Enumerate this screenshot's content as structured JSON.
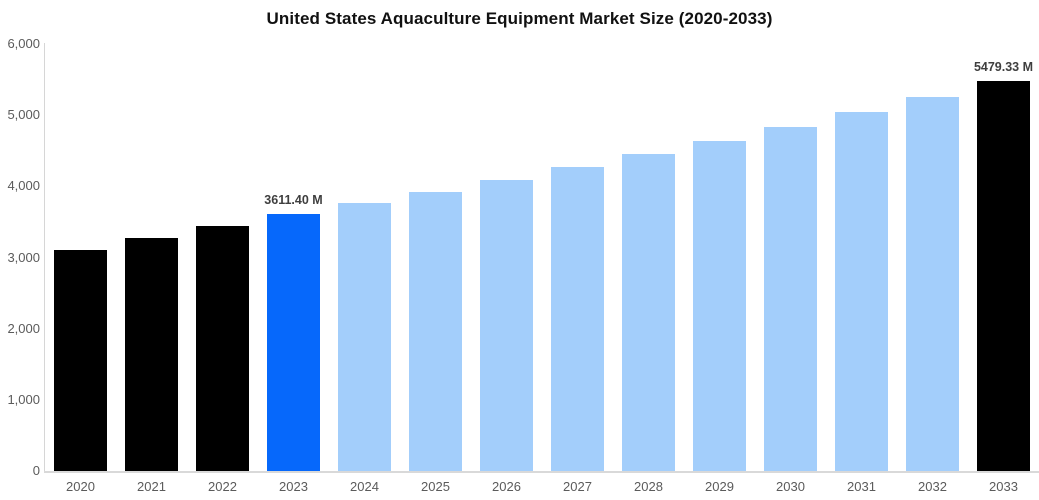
{
  "title": "United States Aquaculture Equipment Market Size (2020-2033)",
  "chart_data": {
    "type": "bar",
    "title": "United States Aquaculture Equipment Market Size (2020-2033)",
    "xlabel": "",
    "ylabel": "",
    "unit": "M",
    "ylim": [
      0,
      6000
    ],
    "grid": "off",
    "legend": "none",
    "yticks": [
      {
        "value": 0,
        "label": "0"
      },
      {
        "value": 1000,
        "label": "1,000"
      },
      {
        "value": 2000,
        "label": "2,000"
      },
      {
        "value": 3000,
        "label": "3,000"
      },
      {
        "value": 4000,
        "label": "4,000"
      },
      {
        "value": 5000,
        "label": "5,000"
      },
      {
        "value": 6000,
        "label": "6,000"
      }
    ],
    "palette": {
      "historical": "#000000",
      "highlight": "#0668fb",
      "forecast": "#a3cefb",
      "final": "#000000"
    },
    "points": [
      {
        "category": "2020",
        "value": 3110,
        "role": "historical",
        "label": ""
      },
      {
        "category": "2021",
        "value": 3280,
        "role": "historical",
        "label": ""
      },
      {
        "category": "2022",
        "value": 3440,
        "role": "historical",
        "label": ""
      },
      {
        "category": "2023",
        "value": 3611.4,
        "role": "highlight",
        "label": "3611.40 M"
      },
      {
        "category": "2024",
        "value": 3765,
        "role": "forecast",
        "label": ""
      },
      {
        "category": "2025",
        "value": 3925,
        "role": "forecast",
        "label": ""
      },
      {
        "category": "2026",
        "value": 4093,
        "role": "forecast",
        "label": ""
      },
      {
        "category": "2027",
        "value": 4267,
        "role": "forecast",
        "label": ""
      },
      {
        "category": "2028",
        "value": 4448,
        "role": "forecast",
        "label": ""
      },
      {
        "category": "2029",
        "value": 4638,
        "role": "forecast",
        "label": ""
      },
      {
        "category": "2030",
        "value": 4835,
        "role": "forecast",
        "label": ""
      },
      {
        "category": "2031",
        "value": 5041,
        "role": "forecast",
        "label": ""
      },
      {
        "category": "2032",
        "value": 5256,
        "role": "forecast",
        "label": ""
      },
      {
        "category": "2033",
        "value": 5479.33,
        "role": "final",
        "label": "5479.33 M"
      }
    ]
  }
}
